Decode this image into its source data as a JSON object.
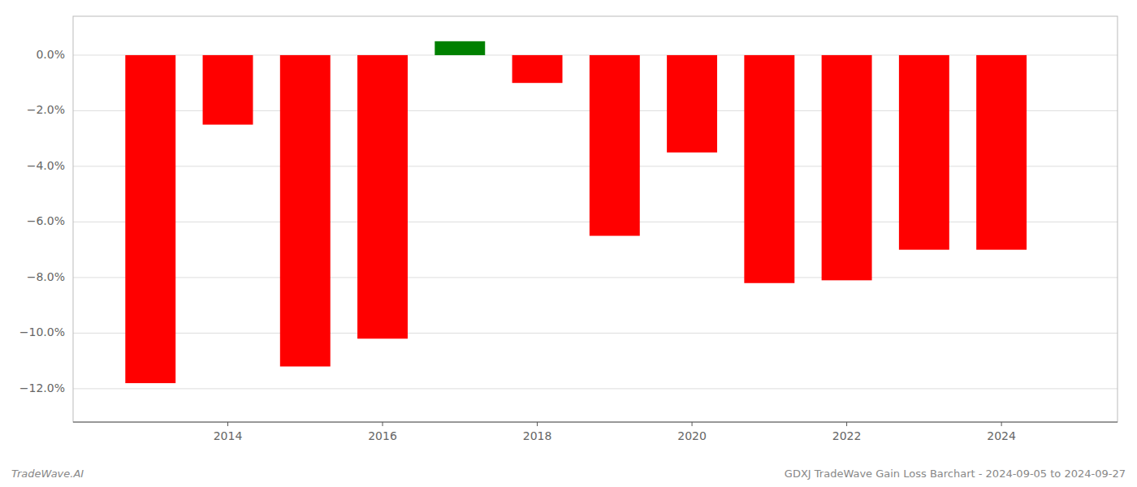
{
  "chart_data": {
    "type": "bar",
    "x": [
      2013,
      2014,
      2015,
      2016,
      2017,
      2018,
      2019,
      2020,
      2021,
      2022,
      2023,
      2024
    ],
    "values": [
      -11.8,
      -2.5,
      -11.2,
      -10.2,
      0.5,
      -1.0,
      -6.5,
      -3.5,
      -8.2,
      -8.1,
      -7.0,
      -7.0
    ],
    "colors": [
      "#ff0000",
      "#ff0000",
      "#ff0000",
      "#ff0000",
      "#008000",
      "#ff0000",
      "#ff0000",
      "#ff0000",
      "#ff0000",
      "#ff0000",
      "#ff0000",
      "#ff0000"
    ],
    "xlim": [
      2012.0,
      2025.5
    ],
    "xticks": [
      2014,
      2016,
      2018,
      2020,
      2022,
      2024
    ],
    "ylim": [
      -13.2,
      1.4
    ],
    "yticks": [
      {
        "value": 0.0,
        "label": "0.0%"
      },
      {
        "value": -2.0,
        "label": "−2.0%"
      },
      {
        "value": -4.0,
        "label": "−4.0%"
      },
      {
        "value": -6.0,
        "label": "−6.0%"
      },
      {
        "value": -8.0,
        "label": "−8.0%"
      },
      {
        "value": -10.0,
        "label": "−10.0%"
      },
      {
        "value": -12.0,
        "label": "−12.0%"
      }
    ],
    "grid": true,
    "annotations": [
      "TradeWave.AI",
      "GDXJ TradeWave Gain Loss Barchart - 2024-09-05 to 2024-09-27"
    ]
  }
}
